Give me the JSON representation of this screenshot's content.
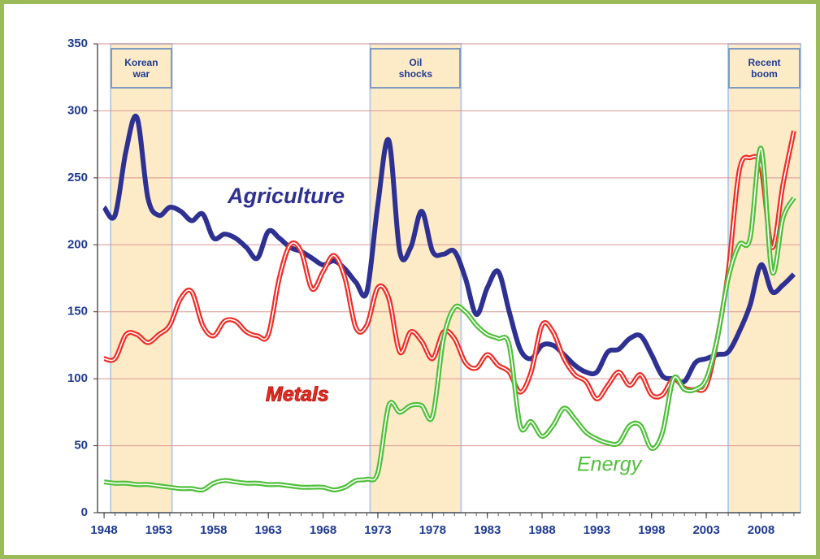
{
  "chart_data": {
    "type": "line",
    "x": [
      1948,
      1949,
      1950,
      1951,
      1952,
      1953,
      1954,
      1955,
      1956,
      1957,
      1958,
      1959,
      1960,
      1961,
      1962,
      1963,
      1964,
      1965,
      1966,
      1967,
      1968,
      1969,
      1970,
      1971,
      1972,
      1973,
      1974,
      1975,
      1976,
      1977,
      1978,
      1979,
      1980,
      1981,
      1982,
      1983,
      1984,
      1985,
      1986,
      1987,
      1988,
      1989,
      1990,
      1991,
      1992,
      1993,
      1994,
      1995,
      1996,
      1997,
      1998,
      1999,
      2000,
      2001,
      2002,
      2003,
      2004,
      2005,
      2006,
      2007,
      2008,
      2009,
      2010,
      2011
    ],
    "series": [
      {
        "name": "Agriculture",
        "color": "#2e3192",
        "values": [
          228,
          222,
          270,
          295,
          235,
          222,
          228,
          225,
          218,
          223,
          205,
          208,
          205,
          198,
          190,
          210,
          205,
          198,
          195,
          190,
          185,
          188,
          182,
          172,
          165,
          230,
          278,
          195,
          198,
          225,
          195,
          193,
          195,
          175,
          148,
          168,
          180,
          150,
          122,
          115,
          125,
          125,
          118,
          110,
          105,
          105,
          120,
          122,
          130,
          132,
          118,
          102,
          100,
          98,
          112,
          115,
          118,
          120,
          135,
          155,
          185,
          165,
          170,
          178
        ]
      },
      {
        "name": "Metals",
        "color": "#ee2c24",
        "values": [
          115,
          115,
          133,
          133,
          127,
          133,
          140,
          160,
          165,
          140,
          132,
          143,
          143,
          135,
          132,
          133,
          175,
          200,
          195,
          167,
          180,
          192,
          175,
          138,
          140,
          168,
          160,
          120,
          135,
          128,
          115,
          135,
          130,
          112,
          108,
          118,
          110,
          105,
          90,
          105,
          140,
          135,
          115,
          103,
          98,
          85,
          95,
          105,
          95,
          103,
          88,
          88,
          100,
          93,
          92,
          95,
          130,
          180,
          255,
          265,
          258,
          198,
          245,
          285
        ]
      },
      {
        "name": "Energy",
        "color": "#4fbf3a",
        "values": [
          23,
          22,
          22,
          21,
          21,
          20,
          19,
          18,
          18,
          17,
          22,
          24,
          23,
          22,
          22,
          21,
          21,
          20,
          19,
          19,
          19,
          17,
          19,
          24,
          25,
          30,
          80,
          75,
          80,
          80,
          72,
          130,
          153,
          150,
          140,
          133,
          130,
          125,
          65,
          68,
          57,
          65,
          78,
          70,
          60,
          55,
          52,
          52,
          65,
          65,
          48,
          60,
          100,
          92,
          92,
          100,
          130,
          175,
          200,
          205,
          272,
          180,
          220,
          235
        ]
      }
    ],
    "annotations": [
      {
        "label": "Korean war",
        "range": [
          1948.6,
          1954.2
        ]
      },
      {
        "label": "Oil shocks",
        "range": [
          1972.3,
          1980.6
        ]
      },
      {
        "label": "Recent boom",
        "range": [
          2005,
          2011.6
        ]
      }
    ],
    "xlim": [
      1947.4,
      2011.6
    ],
    "xticks": [
      1948,
      1953,
      1958,
      1963,
      1968,
      1973,
      1978,
      1983,
      1988,
      1993,
      1998,
      2003,
      2008
    ],
    "ylim": [
      0,
      350
    ],
    "yticks": [
      0,
      50,
      100,
      150,
      200,
      250,
      300,
      350
    ],
    "grid": true
  }
}
